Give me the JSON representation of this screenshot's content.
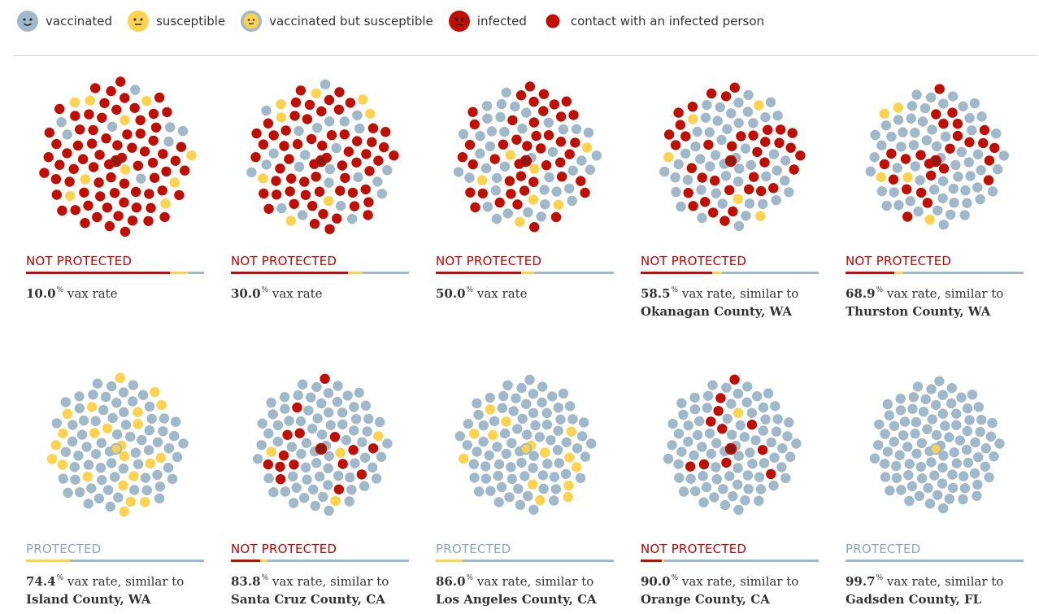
{
  "colors": {
    "vaccinated": "#9fb8ca",
    "susceptible": "#fdd34d",
    "infected": "#c20e00",
    "contact": "#c20e00",
    "protected_text": "#8aa6b9",
    "not_protected_text": "#c70000"
  },
  "legend": [
    {
      "key": "vaccinated",
      "label": "vaccinated",
      "icon": "vaccinated-face-icon"
    },
    {
      "key": "susceptible",
      "label": "susceptible",
      "icon": "susceptible-face-icon"
    },
    {
      "key": "vs",
      "label": "vaccinated but susceptible",
      "icon": "vaccinated-susceptible-face-icon"
    },
    {
      "key": "infected",
      "label": "infected",
      "icon": "infected-face-icon"
    },
    {
      "key": "contact",
      "label": "contact with an infected person",
      "icon": "contact-dot-icon"
    }
  ],
  "chart_data": {
    "type": "dot-simulation",
    "panels": [
      {
        "status": "NOT PROTECTED",
        "rate": "10.0",
        "unit": "%",
        "suffix": " vax rate",
        "county": "",
        "counts": {
          "contact": 75,
          "vaccinated": 8,
          "susceptible": 10
        }
      },
      {
        "status": "NOT PROTECTED",
        "rate": "30.0",
        "unit": "%",
        "suffix": " vax rate",
        "county": "",
        "counts": {
          "contact": 61,
          "vaccinated": 24,
          "susceptible": 8
        }
      },
      {
        "status": "NOT PROTECTED",
        "rate": "50.0",
        "unit": "%",
        "suffix": " vax rate",
        "county": "",
        "counts": {
          "contact": 44,
          "vaccinated": 41,
          "susceptible": 7
        }
      },
      {
        "status": "NOT PROTECTED",
        "rate": "58.5",
        "unit": "%",
        "suffix": " vax rate, similar to",
        "county": "Okanagan County, WA",
        "counts": {
          "contact": 37,
          "vaccinated": 50,
          "susceptible": 5
        }
      },
      {
        "status": "NOT PROTECTED",
        "rate": "68.9",
        "unit": "%",
        "suffix": " vax rate, similar to",
        "county": "Thurston County, WA",
        "counts": {
          "contact": 25,
          "vaccinated": 62,
          "susceptible": 5
        }
      },
      {
        "status": "PROTECTED",
        "rate": "74.4",
        "unit": "%",
        "suffix": " vax rate, similar to",
        "county": "Island County, WA",
        "counts": {
          "contact": 0,
          "vaccinated": 70,
          "susceptible": 23
        }
      },
      {
        "status": "NOT PROTECTED",
        "rate": "83.8",
        "unit": "%",
        "suffix": " vax rate, similar to",
        "county": "Santa Cruz County, CA",
        "counts": {
          "contact": 15,
          "vaccinated": 73,
          "susceptible": 4
        }
      },
      {
        "status": "PROTECTED",
        "rate": "86.0",
        "unit": "%",
        "suffix": " vax rate, similar to",
        "county": "Los Angeles County, CA",
        "counts": {
          "contact": 0,
          "vaccinated": 80,
          "susceptible": 14
        }
      },
      {
        "status": "NOT PROTECTED",
        "rate": "90.0",
        "unit": "%",
        "suffix": " vax rate, similar to",
        "county": "Orange County, CA",
        "counts": {
          "contact": 11,
          "vaccinated": 80,
          "susceptible": 1
        }
      },
      {
        "status": "PROTECTED",
        "rate": "99.7",
        "unit": "%",
        "suffix": " vax rate, similar to",
        "county": "Gadsden County, FL",
        "counts": {
          "contact": 0,
          "vaccinated": 93,
          "susceptible": 0
        }
      }
    ]
  }
}
